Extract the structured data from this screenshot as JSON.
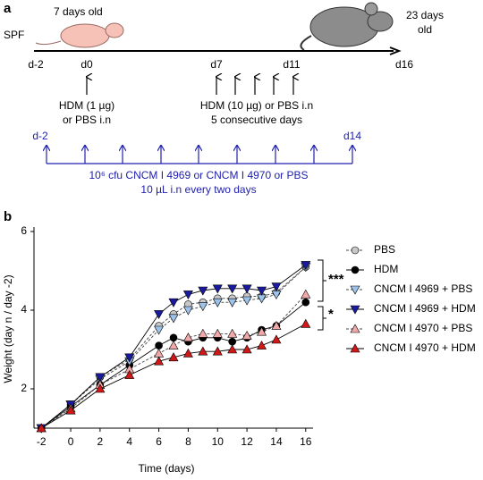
{
  "panel_a": {
    "label": "a",
    "spf": "SPF",
    "young": "7 days old",
    "old_1": "23 days",
    "old_2": "old",
    "days": [
      "d-2",
      "d0",
      "d7",
      "d11",
      "d16"
    ],
    "hdm1_1": "HDM (1 µg)",
    "hdm1_2": "or PBS i.n",
    "hdm10_1": "HDM (10 µg) or PBS i.n",
    "hdm10_2": "5 consecutive days",
    "blue_start": "d-2",
    "blue_end": "d14",
    "blue_1": "10⁶ cfu CNCM I 4969 or CNCM I 4970 or PBS",
    "blue_2": "10 µL i.n every two days"
  },
  "chart_data": {
    "type": "line",
    "panel_label": "b",
    "x_label": "Time (days)",
    "y_label": "Weight (day n / day -2)",
    "x": [
      -2,
      0,
      2,
      4,
      6,
      7,
      8,
      9,
      10,
      11,
      12,
      13,
      14,
      16
    ],
    "xlim": [
      -2.5,
      16.5
    ],
    "xticks": [
      -2,
      0,
      2,
      4,
      6,
      8,
      10,
      12,
      14,
      16
    ],
    "ylim": [
      1,
      6
    ],
    "yticks": [
      2,
      4,
      6
    ],
    "annotations": [
      "***",
      "*"
    ],
    "series": [
      {
        "name": "PBS",
        "color": "#c8c8c8",
        "marker": "circle",
        "dashed": true,
        "values": [
          1,
          1.6,
          2.3,
          2.75,
          3.6,
          3.9,
          4.15,
          4.2,
          4.3,
          4.3,
          4.35,
          4.35,
          4.45,
          5.1
        ]
      },
      {
        "name": "HDM",
        "color": "#000000",
        "marker": "circle",
        "dashed": false,
        "values": [
          1,
          1.55,
          2.1,
          2.6,
          3.1,
          3.3,
          3.2,
          3.3,
          3.3,
          3.2,
          3.3,
          3.5,
          3.6,
          4.2
        ]
      },
      {
        "name": "CNCM I 4969 + PBS",
        "color": "#9ec3ea",
        "marker": "triangle-down",
        "dashed": true,
        "values": [
          1,
          1.6,
          2.25,
          2.7,
          3.5,
          3.8,
          4.0,
          4.1,
          4.2,
          4.2,
          4.25,
          4.3,
          4.4,
          5.1
        ]
      },
      {
        "name": "CNCM I 4969 + HDM",
        "color": "#1a1aa0",
        "marker": "triangle-down",
        "dashed": false,
        "values": [
          1,
          1.6,
          2.3,
          2.8,
          3.9,
          4.2,
          4.4,
          4.5,
          4.55,
          4.55,
          4.55,
          4.5,
          4.6,
          5.15
        ]
      },
      {
        "name": "CNCM I 4970 + PBS",
        "color": "#f0a8a8",
        "marker": "triangle-up",
        "dashed": true,
        "values": [
          1,
          1.5,
          2.1,
          2.5,
          2.9,
          3.1,
          3.3,
          3.4,
          3.4,
          3.4,
          3.35,
          3.45,
          3.6,
          4.4
        ]
      },
      {
        "name": "CNCM I 4970 + HDM",
        "color": "#d01818",
        "marker": "triangle-up",
        "dashed": false,
        "values": [
          1,
          1.45,
          2.0,
          2.35,
          2.7,
          2.8,
          2.9,
          2.95,
          2.95,
          3.0,
          3.0,
          3.1,
          3.25,
          3.65
        ]
      }
    ]
  }
}
